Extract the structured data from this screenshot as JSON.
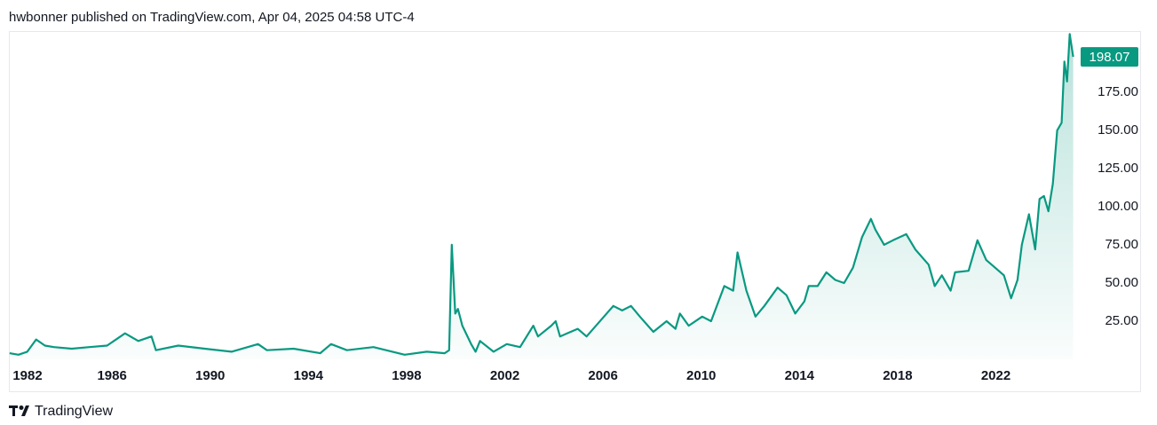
{
  "header": "hwbonner published on TradingView.com, Apr 04, 2025 04:58 UTC-4",
  "footer_logo": "TradingView",
  "chart_data": {
    "type": "area",
    "x": [
      1981.83,
      1982.19,
      1982.55,
      1982.91,
      1983.27,
      1983.63,
      1984.36,
      1985.08,
      1985.8,
      1986.53,
      1987.07,
      1987.61,
      1987.79,
      1988.7,
      1989.78,
      1990.87,
      1991.95,
      1992.31,
      1993.4,
      1994.48,
      1994.92,
      1995.57,
      1996.65,
      1997.92,
      1998.82,
      1999.55,
      1999.73,
      1999.84,
      1999.98,
      2000.09,
      2000.27,
      2000.63,
      2000.81,
      2000.99,
      2001.54,
      2002.08,
      2002.62,
      2003.16,
      2003.35,
      2003.89,
      2004.07,
      2004.25,
      2004.97,
      2005.33,
      2006.42,
      2006.78,
      2007.14,
      2007.5,
      2008.05,
      2008.59,
      2008.95,
      2009.13,
      2009.49,
      2010.04,
      2010.4,
      2010.94,
      2011.3,
      2011.48,
      2011.84,
      2012.21,
      2012.57,
      2013.11,
      2013.47,
      2013.83,
      2014.2,
      2014.38,
      2014.74,
      2015.1,
      2015.46,
      2015.82,
      2016.18,
      2016.55,
      2016.91,
      2017.09,
      2017.45,
      2017.81,
      2018.35,
      2018.72,
      2019.26,
      2019.51,
      2019.8,
      2020.16,
      2020.34,
      2020.89,
      2021.25,
      2021.61,
      2021.97,
      2022.33,
      2022.62,
      2022.88,
      2023.06,
      2023.35,
      2023.6,
      2023.78,
      2023.96,
      2024.14,
      2024.32,
      2024.5,
      2024.68,
      2024.79,
      2024.9,
      2025.01,
      2025.15
    ],
    "series": [
      {
        "color": "#089981",
        "values": [
          4,
          3,
          5,
          13,
          9,
          8,
          7,
          8,
          9,
          17,
          12,
          15,
          6,
          9,
          7,
          5,
          10,
          6,
          7,
          4,
          10,
          6,
          8,
          3,
          5,
          4,
          6,
          75,
          30,
          33,
          22,
          10,
          5,
          12,
          5,
          10,
          8,
          22,
          15,
          22,
          25,
          15,
          20,
          15,
          35,
          32,
          35,
          28,
          18,
          25,
          20,
          30,
          22,
          28,
          25,
          48,
          45,
          70,
          45,
          28,
          35,
          47,
          42,
          30,
          38,
          48,
          48,
          57,
          52,
          50,
          60,
          80,
          92,
          85,
          75,
          78,
          82,
          72,
          62,
          48,
          55,
          45,
          57,
          58,
          78,
          65,
          60,
          55,
          40,
          52,
          75,
          95,
          72,
          105,
          107,
          97,
          115,
          150,
          155,
          195,
          182,
          213,
          198.07
        ]
      }
    ],
    "last_value": 198.07,
    "xlim": [
      1981.8,
      2025.2
    ],
    "xticks": [
      1982,
      1986,
      1990,
      1994,
      1998,
      2002,
      2006,
      2010,
      2014,
      2018,
      2022
    ],
    "ylim": [
      0,
      215
    ],
    "yticks": [
      {
        "value": 25,
        "label": "25.00"
      },
      {
        "value": 50,
        "label": "50.00"
      },
      {
        "value": 75,
        "label": "75.00"
      },
      {
        "value": 100,
        "label": "100.00"
      },
      {
        "value": 125,
        "label": "125.00"
      },
      {
        "value": 150,
        "label": "150.00"
      },
      {
        "value": 175,
        "label": "175.00"
      }
    ],
    "grid": false
  }
}
